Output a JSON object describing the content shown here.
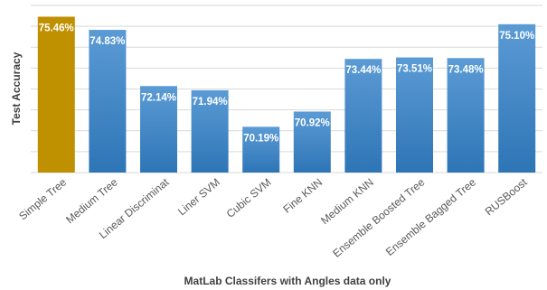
{
  "chart_data": {
    "type": "bar",
    "title": "",
    "xlabel": "MatLab Classifers with Angles data only",
    "ylabel": "Test Accuracy",
    "categories": [
      "Simple Tree",
      "Medium Tree",
      "Linear Discriminat",
      "Liner SVM",
      "Cubic SVM",
      "Fine KNN",
      "Medium KNN",
      "Ensemble Boosted Tree",
      "Ensemble Bagged Tree",
      "RUSBoost"
    ],
    "values": [
      75.46,
      74.83,
      72.14,
      71.94,
      70.19,
      70.92,
      73.44,
      73.51,
      73.48,
      75.1
    ],
    "data_labels": [
      "75.46%",
      "74.83%",
      "72.14%",
      "71.94%",
      "70.19%",
      "70.92%",
      "73.44%",
      "73.51%",
      "73.48%",
      "75.10%"
    ],
    "ylim": [
      68,
      76
    ],
    "grid": true,
    "legend": false,
    "highlight_index": 0,
    "colors": {
      "bar_top": "#5b9bd5",
      "bar_bottom": "#2e75b6",
      "highlight": "#bf9000",
      "grid": "#d9d9d9"
    }
  }
}
